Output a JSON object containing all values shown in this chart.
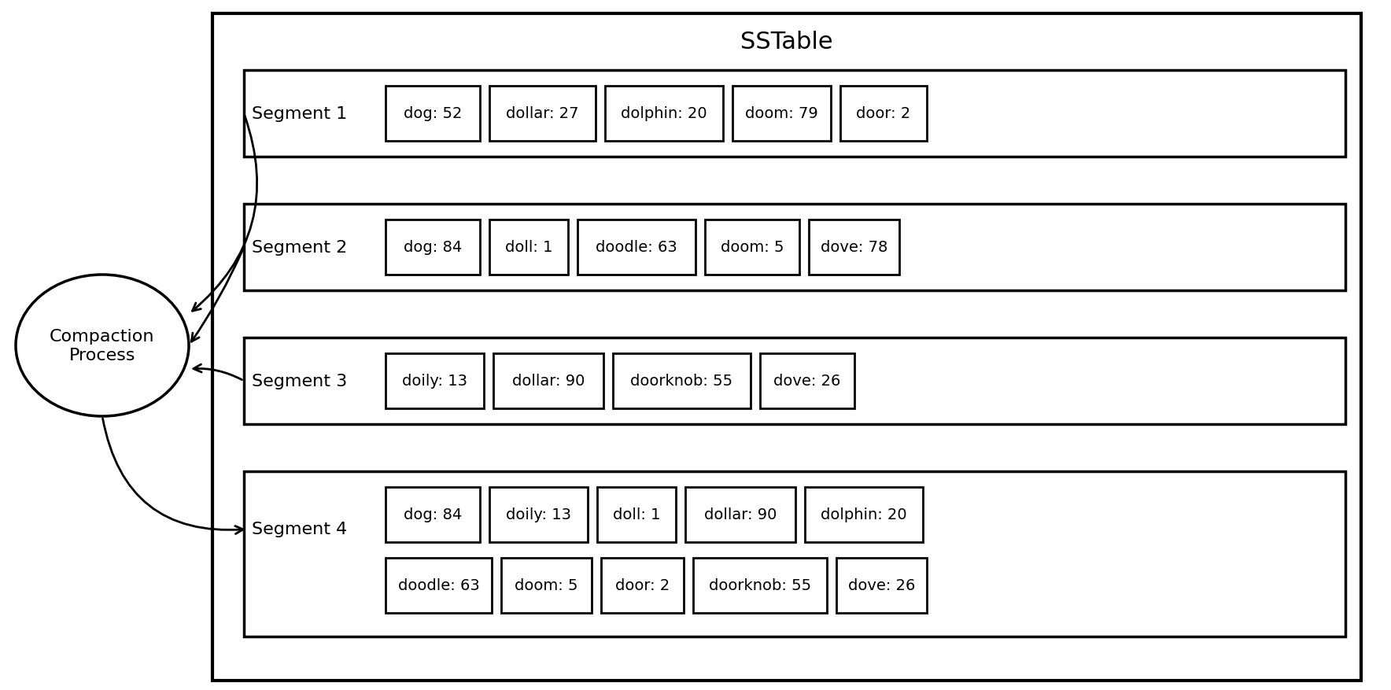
{
  "title": "SSTable",
  "segment1_label": "Segment 1",
  "segment1_items": [
    "dog: 52",
    "dollar: 27",
    "dolphin: 20",
    "doom: 79",
    "door: 2"
  ],
  "segment2_label": "Segment 2",
  "segment2_items": [
    "dog: 84",
    "doll: 1",
    "doodle: 63",
    "doom: 5",
    "dove: 78"
  ],
  "segment3_label": "Segment 3",
  "segment3_items": [
    "doily: 13",
    "dollar: 90",
    "doorknob: 55",
    "dove: 26"
  ],
  "segment4_label": "Segment 4",
  "segment4_row1": [
    "dog: 84",
    "doily: 13",
    "doll: 1",
    "dollar: 90",
    "dolphin: 20"
  ],
  "segment4_row2": [
    "doodle: 63",
    "doom: 5",
    "door: 2",
    "doorknob: 55",
    "dove: 26"
  ],
  "ellipse_label": "Compaction\nProcess",
  "background_color": "#ffffff",
  "lw_outer": 3.0,
  "lw_segment": 2.5,
  "lw_item": 2.0,
  "lw_ellipse": 2.5,
  "lw_arrow": 2.0,
  "title_fontsize": 22,
  "label_fontsize": 16,
  "item_fontsize": 14,
  "ellipse_fontsize": 16
}
